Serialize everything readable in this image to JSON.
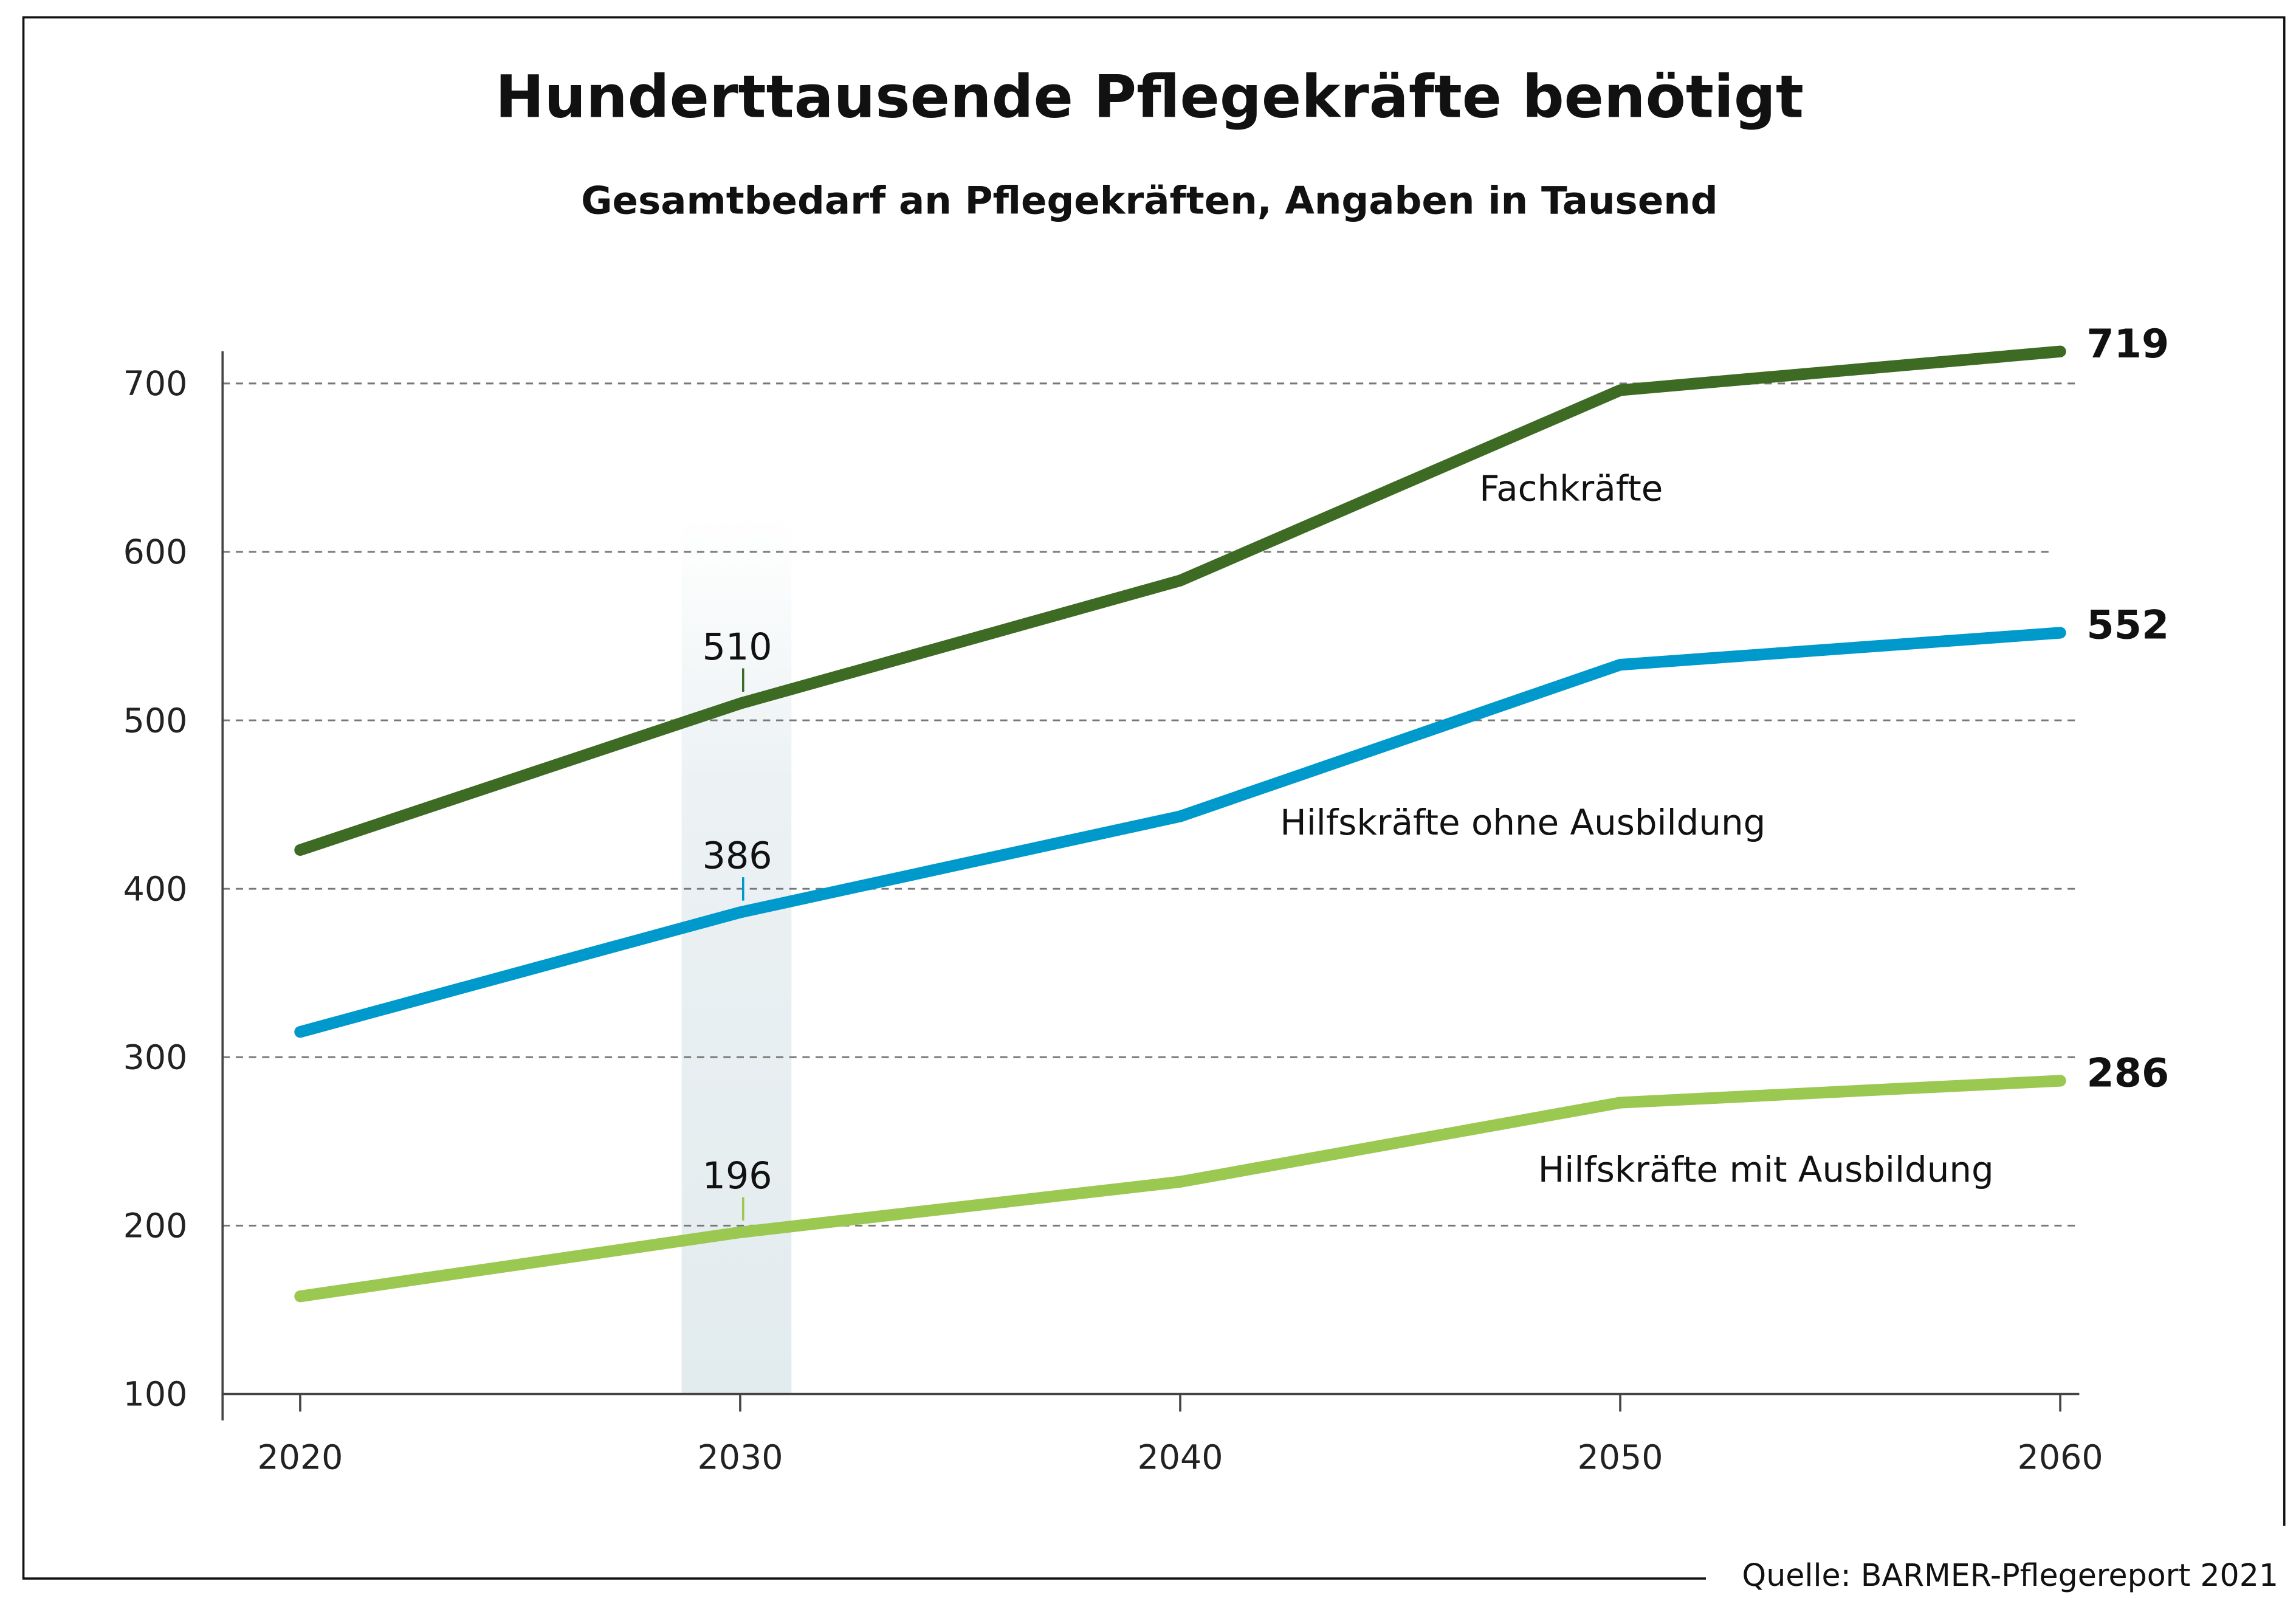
{
  "chart_data": {
    "type": "line",
    "title": "Hunderttausende Pflegekräfte benötigt",
    "subtitle": "Gesamtbedarf an Pflegekräften, Angaben in Tausend",
    "xlabel": "",
    "ylabel": "",
    "x": [
      2020,
      2030,
      2040,
      2050,
      2060
    ],
    "x_tick_labels": [
      "2020",
      "2030",
      "2040",
      "2050",
      "2060"
    ],
    "ylim": [
      100,
      700
    ],
    "y_ticks": [
      100,
      200,
      300,
      400,
      500,
      600,
      700
    ],
    "y_tick_labels": [
      "100",
      "200",
      "300",
      "400",
      "500",
      "600",
      "700"
    ],
    "grid": "horizontal dashed",
    "highlight_x": 2030,
    "series": [
      {
        "name": "Fachkräfte",
        "color": "#3d6b24",
        "values": [
          423,
          510,
          583,
          696,
          719
        ],
        "label_2030": "510",
        "end_label": "719"
      },
      {
        "name": "Hilfskräfte ohne Ausbildung",
        "color": "#0099cc",
        "values": [
          315,
          386,
          443,
          533,
          552
        ],
        "label_2030": "386",
        "end_label": "552"
      },
      {
        "name": "Hilfskräfte mit Ausbildung",
        "color": "#9bc850",
        "values": [
          158,
          196,
          226,
          273,
          286
        ],
        "label_2030": "196",
        "end_label": "286"
      }
    ],
    "source": "Quelle: BARMER-Pflegereport 2021"
  }
}
